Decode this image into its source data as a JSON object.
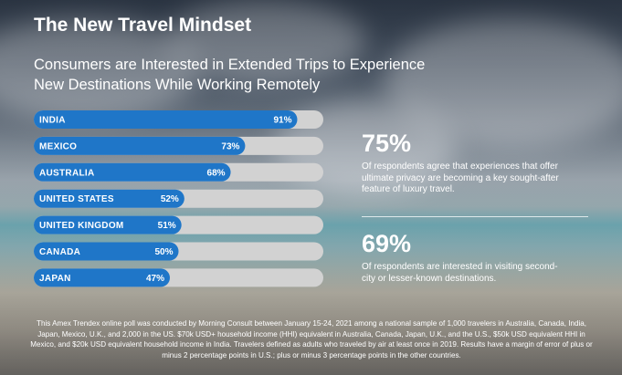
{
  "header": {
    "title": "The New Travel Mindset",
    "subtitle_line1": "Consumers are Interested in Extended Trips to Experience",
    "subtitle_line2": "New Destinations While Working Remotely"
  },
  "chart_data": {
    "type": "bar",
    "orientation": "horizontal",
    "categories": [
      "INDIA",
      "MEXICO",
      "AUSTRALIA",
      "UNITED STATES",
      "UNITED KINGDOM",
      "CANADA",
      "JAPAN"
    ],
    "values": [
      91,
      73,
      68,
      52,
      51,
      50,
      47
    ],
    "value_labels": [
      "91%",
      "73%",
      "68%",
      "52%",
      "51%",
      "50%",
      "47%"
    ],
    "xlim": [
      0,
      100
    ],
    "grid": false,
    "colors": {
      "fill": "#1f76c8",
      "track": "#d2d2d2"
    }
  },
  "stats": [
    {
      "value": "75%",
      "description": "Of respondents agree that experiences that offer ultimate privacy are becoming a key sought-after feature of luxury travel."
    },
    {
      "value": "69%",
      "description": "Of respondents are interested in visiting second-city or lesser-known destinations."
    }
  ],
  "footnote": "This Amex Trendex online poll was conducted by Morning Consult between January 15-24, 2021 among a national sample of 1,000 travelers in Australia, Canada, India, Japan, Mexico, U.K., and 2,000 in the US. $70k USD+ household income (HHI) equivalent in Australia, Canada, Japan, U.K., and the U.S., $50k USD equivalent HHI in Mexico, and $20k USD equivalent household income in India. Travelers defined as adults who traveled by air at least once in 2019. Results have a margin of error of plus or minus 2 percentage points in U.S.; plus or minus 3 percentage points in the other countries."
}
